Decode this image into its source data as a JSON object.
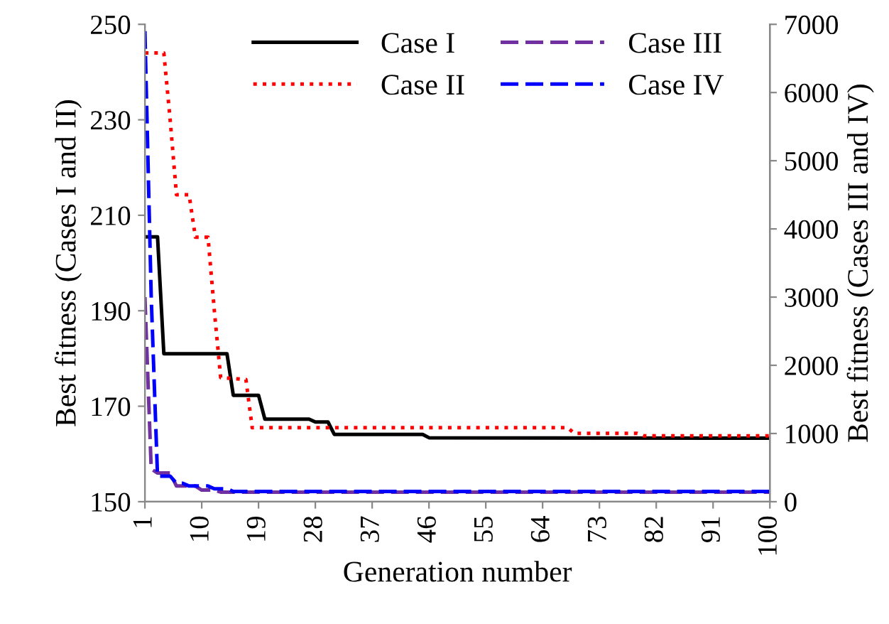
{
  "chart_data": {
    "type": "line",
    "xlabel": "Generation number",
    "ylabel": "Best fitness (Cases I and II)",
    "y2label": "Best fitness (Cases III and IV)",
    "xlim": [
      1,
      100
    ],
    "xticks": [
      1,
      10,
      19,
      28,
      37,
      46,
      55,
      64,
      73,
      82,
      91,
      100
    ],
    "ylim": [
      150,
      250
    ],
    "yticks": [
      150,
      170,
      190,
      210,
      230,
      250
    ],
    "y2lim": [
      0,
      7000
    ],
    "y2ticks": [
      0,
      1000,
      2000,
      3000,
      4000,
      5000,
      6000,
      7000
    ],
    "grid": false,
    "legend": "top",
    "series": [
      {
        "name": "Case I",
        "color": "#000000",
        "line_style": "solid",
        "x": [
          1,
          3,
          4,
          14,
          15,
          19,
          20,
          27,
          28,
          30,
          31,
          45,
          46,
          100
        ],
        "values": [
          205.5,
          205.5,
          181,
          181,
          172.3,
          172.3,
          167.3,
          167.3,
          166.7,
          166.7,
          164.1,
          164.1,
          163.4,
          163.3
        ]
      },
      {
        "name": "Case II",
        "color": "#ff0000",
        "line_style": "dotted",
        "x": [
          1,
          4,
          5,
          6,
          8,
          9,
          11,
          12,
          13,
          17,
          18,
          68,
          69,
          79,
          80,
          100
        ],
        "values": [
          244,
          244,
          230,
          214.3,
          214.3,
          205.4,
          205.4,
          190,
          176,
          175.6,
          165.5,
          165.5,
          164.3,
          164.3,
          163.8,
          163.8
        ]
      },
      {
        "name": "Case III",
        "color": "#7030a0",
        "line_style": "dashed",
        "axis": "y2",
        "x": [
          1,
          2,
          3,
          5,
          6,
          9,
          10,
          12,
          13,
          100
        ],
        "values": [
          3000,
          480,
          420,
          420,
          230,
          230,
          170,
          170,
          140,
          140
        ]
      },
      {
        "name": "Case IV",
        "color": "#0000ff",
        "line_style": "dashed",
        "axis": "y2",
        "x": [
          1,
          2,
          3,
          5,
          6,
          7,
          8,
          11,
          12,
          14,
          15,
          100
        ],
        "values": [
          6900,
          3000,
          375,
          375,
          270,
          270,
          230,
          230,
          190,
          190,
          150,
          150
        ]
      }
    ]
  }
}
